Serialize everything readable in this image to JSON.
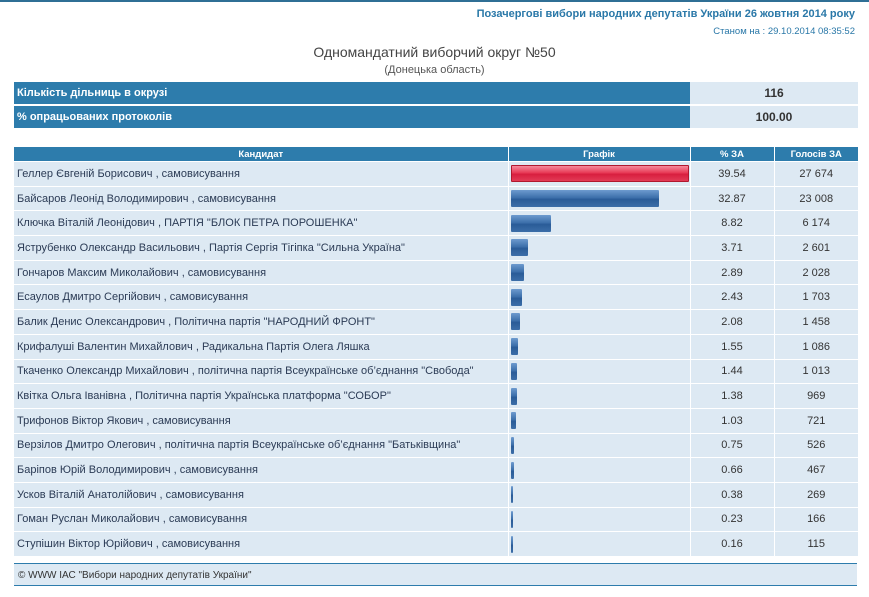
{
  "header": {
    "election_title": "Позачергові вибори народних депутатів України 26 жовтня 2014 року",
    "as_of": "Станом на : 29.10.2014 08:35:52"
  },
  "district": {
    "title": "Одномандатний виборчий округ №50",
    "region": "(Донецька область)"
  },
  "info": [
    {
      "label": "Кількість дільниць в окрузі",
      "value": "116"
    },
    {
      "label": "% опрацьованих протоколів",
      "value": "100.00"
    }
  ],
  "table": {
    "headers": {
      "candidate": "Кандидат",
      "graph": "Графік",
      "percent": "% ЗА",
      "votes": "Голосів ЗА"
    },
    "rows": [
      {
        "name": "Геллер Євгеній Борисович , самовисування",
        "percent": "39.54",
        "votes": "27 674"
      },
      {
        "name": "Байсаров Леонід Володимирович , самовисування",
        "percent": "32.87",
        "votes": "23 008"
      },
      {
        "name": "Ключка Віталій Леонідович , ПАРТІЯ \"БЛОК ПЕТРА ПОРОШЕНКА\"",
        "percent": "8.82",
        "votes": "6 174"
      },
      {
        "name": "Яструбенко Олександр Васильович , Партія Сергія Тігіпка \"Сильна Україна\"",
        "percent": "3.71",
        "votes": "2 601"
      },
      {
        "name": "Гончаров Максим Миколайович , самовисування",
        "percent": "2.89",
        "votes": "2 028"
      },
      {
        "name": "Есаулов Дмитро Сергійович , самовисування",
        "percent": "2.43",
        "votes": "1 703"
      },
      {
        "name": "Балик Денис Олександрович , Політична партія \"НАРОДНИЙ ФРОНТ\"",
        "percent": "2.08",
        "votes": "1 458"
      },
      {
        "name": "Крифалуші Валентин Михайлович , Радикальна Партія Олега Ляшка",
        "percent": "1.55",
        "votes": "1 086"
      },
      {
        "name": "Ткаченко Олександр Михайлович , політична партія Всеукраїнське об’єднання \"Свобода\"",
        "percent": "1.44",
        "votes": "1 013"
      },
      {
        "name": "Квітка Ольга Іванівна , Політична партія Українська платформа \"СОБОР\"",
        "percent": "1.38",
        "votes": "969"
      },
      {
        "name": "Трифонов Віктор Якович , самовисування",
        "percent": "1.03",
        "votes": "721"
      },
      {
        "name": "Верзілов Дмитро Олегович , політична партія Всеукраїнське об’єднання \"Батьківщина\"",
        "percent": "0.75",
        "votes": "526"
      },
      {
        "name": "Баріпов Юрій Володимирович , самовисування",
        "percent": "0.66",
        "votes": "467"
      },
      {
        "name": "Усков Віталій Анатолійович , самовисування",
        "percent": "0.38",
        "votes": "269"
      },
      {
        "name": "Гоман Руслан Миколайович , самовисування",
        "percent": "0.23",
        "votes": "166"
      },
      {
        "name": "Ступішин Віктор Юрійович , самовисування",
        "percent": "0.16",
        "votes": "115"
      }
    ]
  },
  "footer": {
    "text": "© WWW ІАС \"Вибори народних депутатів України\""
  },
  "colors": {
    "header_bg": "#2d7cac",
    "cell_bg": "#dde9f3",
    "bar_blue": "#2a5c98",
    "bar_leader": "#e73a56"
  }
}
